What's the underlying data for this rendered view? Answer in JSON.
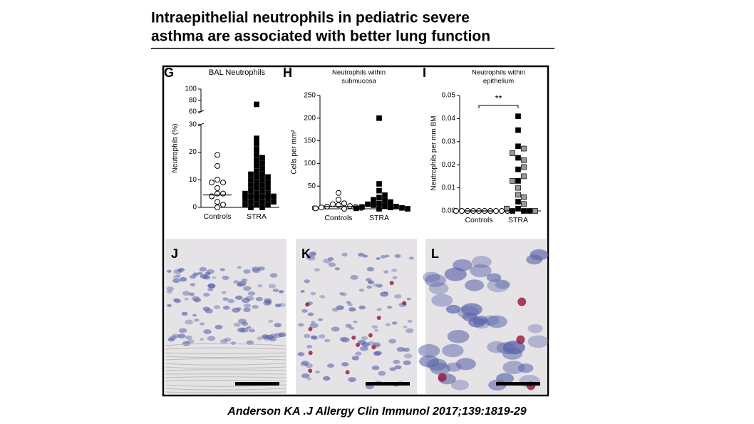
{
  "title": [
    "Intraepithelial neutrophils in pediatric severe",
    "asthma are associated with better lung function"
  ],
  "citation": "Anderson KA .J Allergy Clin Immunol 2017;139:1819-29",
  "images": [
    {
      "label": "J"
    },
    {
      "label": "K"
    },
    {
      "label": "L"
    }
  ],
  "chart_data": [
    {
      "type": "dot",
      "label": "G",
      "title": [
        "BAL Neutrophils"
      ],
      "ylabel": "Neutrophils (%)",
      "categories": [
        "Controls",
        "STRA"
      ],
      "values": [
        [
          19,
          15,
          10,
          9,
          9,
          7,
          5,
          5,
          4,
          2,
          1,
          0
        ],
        [
          73,
          25,
          23,
          21,
          19,
          18,
          17,
          16,
          15,
          14,
          13,
          12,
          12,
          11,
          11,
          10,
          10,
          9,
          9,
          8,
          8,
          7,
          7,
          6,
          6,
          5,
          5,
          5,
          4,
          4,
          4,
          3,
          3,
          3,
          2,
          2,
          2,
          1,
          1,
          1,
          0,
          0
        ]
      ],
      "medians": [
        4.5,
        4
      ],
      "markers": [
        "open-circle",
        "square"
      ],
      "colors": [
        "#ffffff",
        "#000000"
      ],
      "ylim": [
        0,
        100
      ],
      "axis_break": [
        30,
        60
      ],
      "yticks": [
        0,
        10,
        20,
        30,
        60,
        80,
        100
      ]
    },
    {
      "type": "dot",
      "label": "H",
      "title": [
        "Neutrophils within",
        "submucosa"
      ],
      "ylabel": "Cells per mm²",
      "categories": [
        "Controls",
        "STRA"
      ],
      "values": [
        [
          35,
          20,
          12,
          10,
          8,
          6,
          5,
          4,
          3,
          2,
          1,
          0
        ],
        [
          200,
          55,
          40,
          30,
          25,
          20,
          18,
          15,
          12,
          10,
          8,
          6,
          5,
          4,
          3,
          2,
          1,
          0,
          0
        ]
      ],
      "medians": [
        5,
        10
      ],
      "markers": [
        "open-circle",
        "square"
      ],
      "colors": [
        "#ffffff",
        "#000000"
      ],
      "ylim": [
        0,
        250
      ],
      "yticks": [
        0,
        50,
        100,
        150,
        200,
        250
      ]
    },
    {
      "type": "dot",
      "label": "I",
      "title": [
        "Neutrophils within",
        "epithelium"
      ],
      "ylabel": "Neutrophils per mm BM",
      "annotation": "**",
      "categories": [
        "Controls",
        "STRA"
      ],
      "values": [
        [
          0,
          0,
          0,
          0,
          0,
          0,
          0,
          0,
          0,
          0
        ],
        [
          0.041,
          0.035,
          0.028,
          0.023,
          0.018,
          0.013,
          0.004,
          0.001,
          0,
          0,
          0,
          0.027,
          0.025,
          0.022,
          0.019,
          0.015,
          0.013,
          0.01,
          0.007,
          0.006,
          0.003,
          0.001,
          0
        ]
      ],
      "medians": [
        0,
        0
      ],
      "markers": [
        "open-circle",
        "square"
      ],
      "colors": [
        "#ffffff",
        [
          "#000000",
          "#000000",
          "#000000",
          "#000000",
          "#000000",
          "#000000",
          "#000000",
          "#000000",
          "#000000",
          "#000000",
          "#000000",
          "#999999",
          "#999999",
          "#999999",
          "#999999",
          "#999999",
          "#999999",
          "#999999",
          "#999999",
          "#999999",
          "#999999",
          "#999999",
          "#999999"
        ]
      ],
      "ylim": [
        0,
        0.05
      ],
      "yticks": [
        {
          "value": 0,
          "label": "0.00"
        },
        0.01,
        0.02,
        0.03,
        0.04,
        0.05
      ]
    }
  ]
}
